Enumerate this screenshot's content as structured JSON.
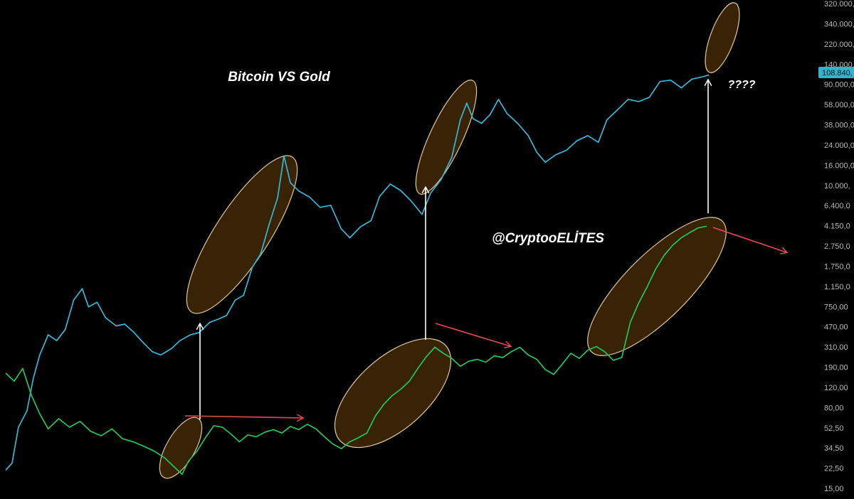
{
  "chart_data": {
    "type": "line",
    "title": "Bitcoin VS Gold",
    "watermark": "@CryptooELİTES",
    "question_mark_note": "????",
    "y_scale": "log",
    "ylim": [
      13,
      540000
    ],
    "y_ticks": [
      "320.000,",
      "340.000,",
      "220.000,",
      "140.000,",
      "90.000,0",
      "58.000,0",
      "38.000,0",
      "24.000,0",
      "16.000,0",
      "10.000,",
      "6.400,0",
      "4.150,0",
      "2.750,0",
      "1.750,0",
      "1.150,0",
      "750,00",
      "470,00",
      "310,00",
      "190,00",
      "120,00",
      "80,00",
      "52,50",
      "34,50",
      "22,50",
      "15,00"
    ],
    "last_price_label": "108.840,",
    "grid": false,
    "colors": {
      "bitcoin": "#35b8d8",
      "gold_ratio": "#22c55e",
      "highlight_fill": "#3d2608",
      "highlight_stroke": "#f3d9a8",
      "red_arrow": "#e64a55",
      "white_arrow": "#ffffff",
      "badge": "#2fb4d2"
    },
    "series": [
      {
        "key": "bitcoin",
        "points": [
          [
            0,
            24
          ],
          [
            0.3,
            28
          ],
          [
            0.6,
            60
          ],
          [
            1,
            85
          ],
          [
            1.3,
            170
          ],
          [
            1.6,
            280
          ],
          [
            2,
            430
          ],
          [
            2.4,
            380
          ],
          [
            2.8,
            480
          ],
          [
            3.2,
            900
          ],
          [
            3.6,
            1150
          ],
          [
            3.9,
            780
          ],
          [
            4.3,
            860
          ],
          [
            4.7,
            620
          ],
          [
            5.2,
            520
          ],
          [
            5.6,
            540
          ],
          [
            6,
            460
          ],
          [
            6.5,
            360
          ],
          [
            6.9,
            300
          ],
          [
            7.3,
            280
          ],
          [
            7.8,
            320
          ],
          [
            8.2,
            380
          ],
          [
            8.7,
            430
          ],
          [
            9.1,
            450
          ],
          [
            9.6,
            560
          ],
          [
            10,
            600
          ],
          [
            10.4,
            650
          ],
          [
            10.8,
            900
          ],
          [
            11.2,
            1000
          ],
          [
            11.6,
            1800
          ],
          [
            12,
            2400
          ],
          [
            12.4,
            4500
          ],
          [
            12.8,
            8000
          ],
          [
            13.1,
            19500
          ],
          [
            13.4,
            11000
          ],
          [
            13.8,
            9200
          ],
          [
            14.3,
            8100
          ],
          [
            14.8,
            6500
          ],
          [
            15.3,
            6800
          ],
          [
            15.8,
            4100
          ],
          [
            16.2,
            3400
          ],
          [
            16.7,
            4300
          ],
          [
            17.2,
            4900
          ],
          [
            17.6,
            8200
          ],
          [
            18.1,
            10700
          ],
          [
            18.6,
            9300
          ],
          [
            19.1,
            7400
          ],
          [
            19.6,
            5600
          ],
          [
            20,
            8800
          ],
          [
            20.5,
            11800
          ],
          [
            21,
            19000
          ],
          [
            21.4,
            42000
          ],
          [
            21.7,
            60000
          ],
          [
            22,
            43000
          ],
          [
            22.4,
            39000
          ],
          [
            22.8,
            47000
          ],
          [
            23.2,
            65000
          ],
          [
            23.6,
            48000
          ],
          [
            24.1,
            39000
          ],
          [
            24.6,
            30000
          ],
          [
            25,
            21000
          ],
          [
            25.4,
            17000
          ],
          [
            25.9,
            20000
          ],
          [
            26.4,
            22000
          ],
          [
            26.9,
            27000
          ],
          [
            27.4,
            30000
          ],
          [
            27.9,
            26000
          ],
          [
            28.3,
            42000
          ],
          [
            28.8,
            52000
          ],
          [
            29.3,
            65000
          ],
          [
            29.8,
            62000
          ],
          [
            30.3,
            68000
          ],
          [
            30.8,
            95000
          ],
          [
            31.3,
            98000
          ],
          [
            31.8,
            83000
          ],
          [
            32.3,
            100000
          ],
          [
            32.8,
            105000
          ],
          [
            33.1,
            109000
          ]
        ]
      },
      {
        "key": "gold_ratio",
        "points": [
          [
            0,
            190
          ],
          [
            0.4,
            160
          ],
          [
            0.8,
            210
          ],
          [
            1.2,
            120
          ],
          [
            1.6,
            80
          ],
          [
            2,
            58
          ],
          [
            2.5,
            72
          ],
          [
            3,
            60
          ],
          [
            3.5,
            68
          ],
          [
            4,
            55
          ],
          [
            4.5,
            50
          ],
          [
            5,
            58
          ],
          [
            5.5,
            47
          ],
          [
            6,
            44
          ],
          [
            6.5,
            40
          ],
          [
            7,
            36
          ],
          [
            7.5,
            31
          ],
          [
            8,
            25
          ],
          [
            8.3,
            22
          ],
          [
            8.6,
            29
          ],
          [
            9,
            36
          ],
          [
            9.4,
            48
          ],
          [
            9.8,
            62
          ],
          [
            10.2,
            60
          ],
          [
            10.6,
            52
          ],
          [
            11,
            44
          ],
          [
            11.4,
            51
          ],
          [
            11.8,
            49
          ],
          [
            12.2,
            54
          ],
          [
            12.6,
            57
          ],
          [
            13,
            53
          ],
          [
            13.4,
            61
          ],
          [
            13.8,
            57
          ],
          [
            14.2,
            64
          ],
          [
            14.6,
            58
          ],
          [
            15,
            49
          ],
          [
            15.4,
            42
          ],
          [
            15.8,
            38
          ],
          [
            16.2,
            44
          ],
          [
            16.6,
            48
          ],
          [
            17,
            53
          ],
          [
            17.4,
            76
          ],
          [
            17.8,
            98
          ],
          [
            18.2,
            118
          ],
          [
            18.6,
            135
          ],
          [
            19,
            160
          ],
          [
            19.4,
            210
          ],
          [
            19.8,
            270
          ],
          [
            20.2,
            330
          ],
          [
            20.6,
            290
          ],
          [
            21,
            260
          ],
          [
            21.4,
            220
          ],
          [
            21.8,
            245
          ],
          [
            22.2,
            255
          ],
          [
            22.6,
            240
          ],
          [
            23,
            275
          ],
          [
            23.4,
            265
          ],
          [
            23.8,
            300
          ],
          [
            24.2,
            330
          ],
          [
            24.6,
            280
          ],
          [
            25,
            255
          ],
          [
            25.4,
            205
          ],
          [
            25.8,
            185
          ],
          [
            26.2,
            230
          ],
          [
            26.6,
            290
          ],
          [
            27,
            260
          ],
          [
            27.4,
            310
          ],
          [
            27.8,
            335
          ],
          [
            28.2,
            300
          ],
          [
            28.6,
            250
          ],
          [
            29,
            265
          ],
          [
            29.4,
            560
          ],
          [
            29.8,
            850
          ],
          [
            30.2,
            1200
          ],
          [
            30.6,
            1750
          ],
          [
            31,
            2350
          ],
          [
            31.4,
            2900
          ],
          [
            31.8,
            3400
          ],
          [
            32.2,
            3800
          ],
          [
            32.6,
            4200
          ],
          [
            33,
            4350
          ]
        ]
      }
    ]
  }
}
